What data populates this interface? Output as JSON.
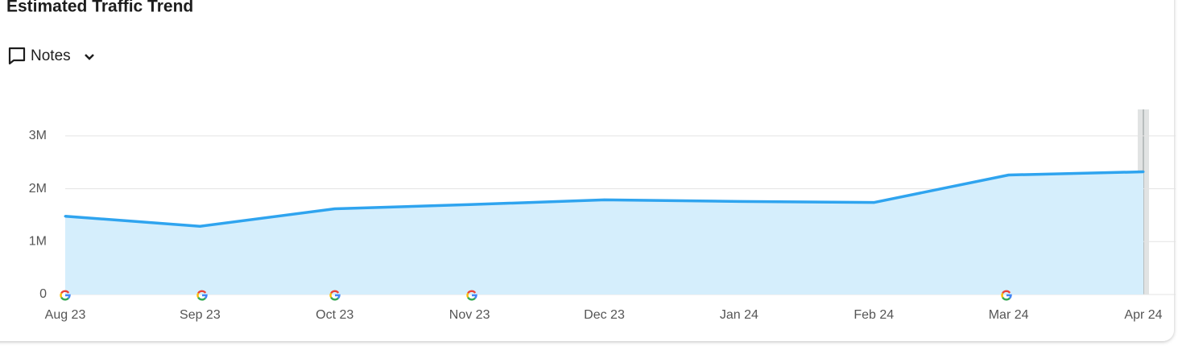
{
  "notes_button": {
    "label": "Notes"
  },
  "chart_data": {
    "type": "area",
    "title": "Estimated Traffic Trend",
    "categories": [
      "Aug 23",
      "Sep 23",
      "Oct 23",
      "Nov 23",
      "Dec 23",
      "Jan 24",
      "Feb 24",
      "Mar 24",
      "Apr 24"
    ],
    "values": [
      1480000,
      1290000,
      1620000,
      1700000,
      1790000,
      1760000,
      1740000,
      2260000,
      2320000
    ],
    "color": "#2fa4ef",
    "fill": "#d5eefc",
    "ylim": [
      0,
      3500000
    ],
    "yticks": [
      0,
      {
        "value": 1000000,
        "label": "1M"
      },
      {
        "value": 2000000,
        "label": "2M"
      },
      {
        "value": 3000000,
        "label": "3M"
      }
    ],
    "grid": true
  }
}
